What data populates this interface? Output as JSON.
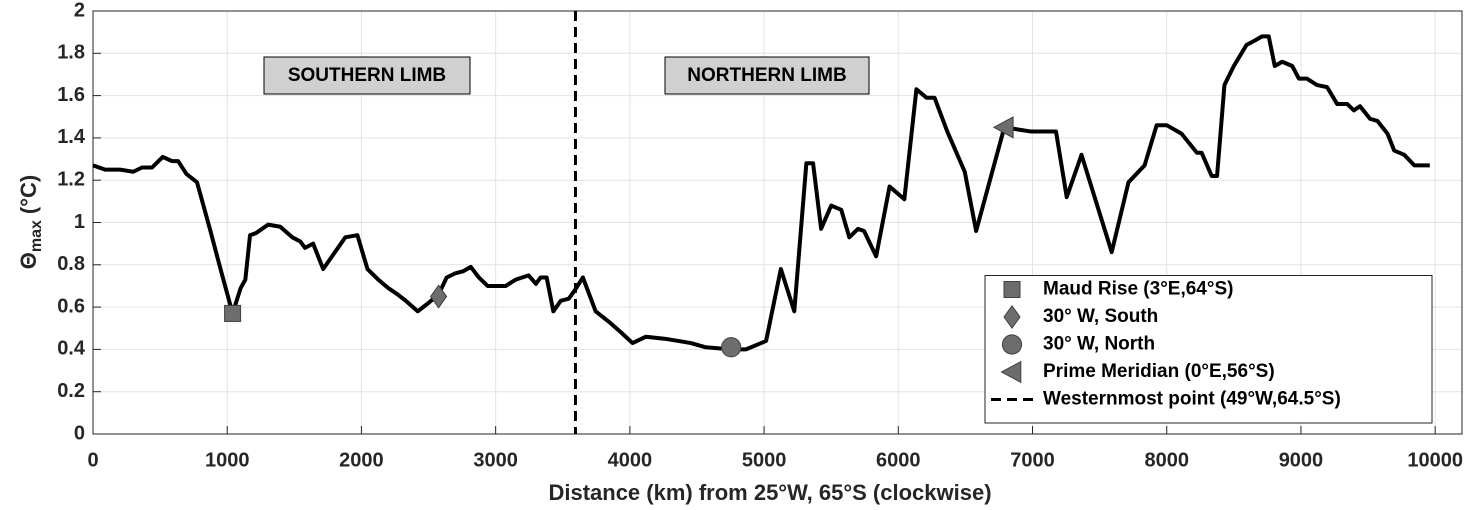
{
  "chart_data": {
    "type": "line",
    "x_label": "Distance (km) from 25°W, 65°S (clockwise)",
    "y_label": {
      "symbol": "Θ",
      "subscript": "max",
      "unit": "(°C)"
    },
    "annotations": [
      "SOUTHERN LIMB",
      "NORTHERN LIMB"
    ],
    "xlim": [
      0,
      10200
    ],
    "ylim": [
      0,
      2
    ],
    "xticks": [
      0,
      1000,
      2000,
      3000,
      4000,
      5000,
      6000,
      7000,
      8000,
      9000,
      10000
    ],
    "yticks": [
      0,
      0.2,
      0.4,
      0.6,
      0.8,
      1,
      1.2,
      1.4,
      1.6,
      1.8,
      2
    ],
    "grid": true,
    "legend": "lower right",
    "x": [
      0,
      90,
      200,
      300,
      365,
      440,
      520,
      590,
      635,
      695,
      775,
      875,
      950,
      1040,
      1100,
      1135,
      1170,
      1215,
      1305,
      1395,
      1485,
      1545,
      1580,
      1640,
      1715,
      1880,
      1970,
      2045,
      2125,
      2200,
      2270,
      2330,
      2420,
      2500,
      2575,
      2635,
      2700,
      2760,
      2815,
      2875,
      2940,
      3075,
      3150,
      3245,
      3300,
      3335,
      3380,
      3430,
      3485,
      3545,
      3590,
      3650,
      3745,
      3845,
      3935,
      4020,
      4120,
      4265,
      4455,
      4565,
      4755,
      4865,
      4940,
      5015,
      5125,
      5225,
      5315,
      5365,
      5425,
      5500,
      5575,
      5635,
      5700,
      5745,
      5835,
      5935,
      6045,
      6135,
      6210,
      6270,
      6365,
      6495,
      6580,
      6790,
      6990,
      7175,
      7255,
      7365,
      7590,
      7715,
      7835,
      7925,
      8000,
      8110,
      8225,
      8260,
      8335,
      8375,
      8430,
      8500,
      8595,
      8655,
      8710,
      8760,
      8805,
      8860,
      8935,
      8985,
      9045,
      9120,
      9195,
      9270,
      9345,
      9395,
      9440,
      9515,
      9570,
      9645,
      9695,
      9770,
      9845,
      9960
    ],
    "series": [
      {
        "color": "#000000",
        "values": [
          1.27,
          1.25,
          1.25,
          1.24,
          1.26,
          1.26,
          1.31,
          1.29,
          1.29,
          1.23,
          1.19,
          0.96,
          0.78,
          0.57,
          0.69,
          0.73,
          0.94,
          0.95,
          0.99,
          0.98,
          0.93,
          0.91,
          0.88,
          0.9,
          0.78,
          0.93,
          0.94,
          0.78,
          0.73,
          0.69,
          0.66,
          0.63,
          0.58,
          0.62,
          0.66,
          0.74,
          0.76,
          0.77,
          0.79,
          0.74,
          0.7,
          0.7,
          0.73,
          0.75,
          0.71,
          0.74,
          0.74,
          0.58,
          0.63,
          0.64,
          0.68,
          0.74,
          0.58,
          0.53,
          0.48,
          0.43,
          0.46,
          0.45,
          0.43,
          0.41,
          0.4,
          0.4,
          0.42,
          0.44,
          0.78,
          0.58,
          1.28,
          1.28,
          0.97,
          1.08,
          1.06,
          0.93,
          0.97,
          0.96,
          0.84,
          1.17,
          1.11,
          1.63,
          1.59,
          1.59,
          1.43,
          1.24,
          0.96,
          1.45,
          1.43,
          1.43,
          1.12,
          1.32,
          0.86,
          1.19,
          1.27,
          1.46,
          1.46,
          1.42,
          1.33,
          1.33,
          1.22,
          1.22,
          1.65,
          1.74,
          1.84,
          1.86,
          1.88,
          1.88,
          1.74,
          1.76,
          1.74,
          1.68,
          1.68,
          1.65,
          1.64,
          1.56,
          1.56,
          1.53,
          1.55,
          1.49,
          1.48,
          1.42,
          1.34,
          1.32,
          1.27,
          1.27
        ]
      }
    ],
    "markers": [
      {
        "name": "Maud Rise (3°E,64°S)",
        "shape": "square",
        "color": "#6d6d6d",
        "x": 1040,
        "y": 0.57
      },
      {
        "name": "30° W, South",
        "shape": "diamond",
        "color": "#6d6d6d",
        "x": 2575,
        "y": 0.65
      },
      {
        "name": "30° W, North",
        "shape": "circle",
        "color": "#6d6d6d",
        "x": 4755,
        "y": 0.41
      },
      {
        "name": "Prime Meridian (0°E,56°S)",
        "shape": "triangle-left",
        "color": "#6d6d6d",
        "x": 6790,
        "y": 1.45
      }
    ],
    "vlines": [
      {
        "name": "Westernmost point (49°W,64.5°S)",
        "x": 3595,
        "style": "dashed",
        "color": "#000000"
      }
    ]
  }
}
